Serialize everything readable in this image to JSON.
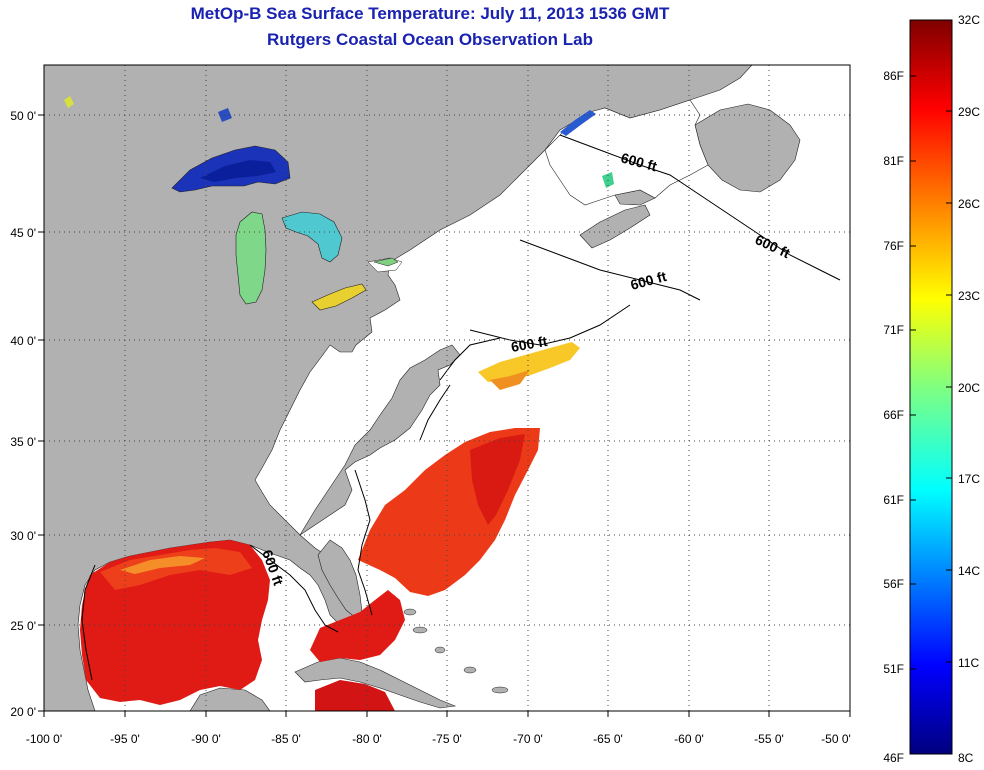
{
  "title": "MetOp-B Sea Surface Temperature:  July 11, 2013 1536 GMT",
  "subtitle": "Rutgers Coastal Ocean Observation Lab",
  "x_ticks": [
    "-100 0'",
    "-95 0'",
    "-90 0'",
    "-85 0'",
    "-80 0'",
    "-75 0'",
    "-70 0'",
    "-65 0'",
    "-60 0'",
    "-55 0'",
    "-50 0'"
  ],
  "y_ticks": [
    "50 0'",
    "45 0'",
    "40 0'",
    "35 0'",
    "30 0'",
    "25 0'",
    "20 0'"
  ],
  "contour_label": "600 ft",
  "colorbar": {
    "celsius": [
      "32C",
      "29C",
      "26C",
      "23C",
      "20C",
      "17C",
      "14C",
      "11C",
      "8C"
    ],
    "fahrenheit": [
      "86F",
      "81F",
      "76F",
      "71F",
      "66F",
      "61F",
      "56F",
      "51F",
      "46F"
    ],
    "range_c": [
      8,
      32
    ],
    "range_f": [
      46,
      90
    ]
  },
  "colors": {
    "land": "#b1b1b1",
    "ocean_no_data": "#ffffff",
    "title": "#1a22b0",
    "warm": "#e8201a",
    "cold": "#0a2bbf"
  }
}
